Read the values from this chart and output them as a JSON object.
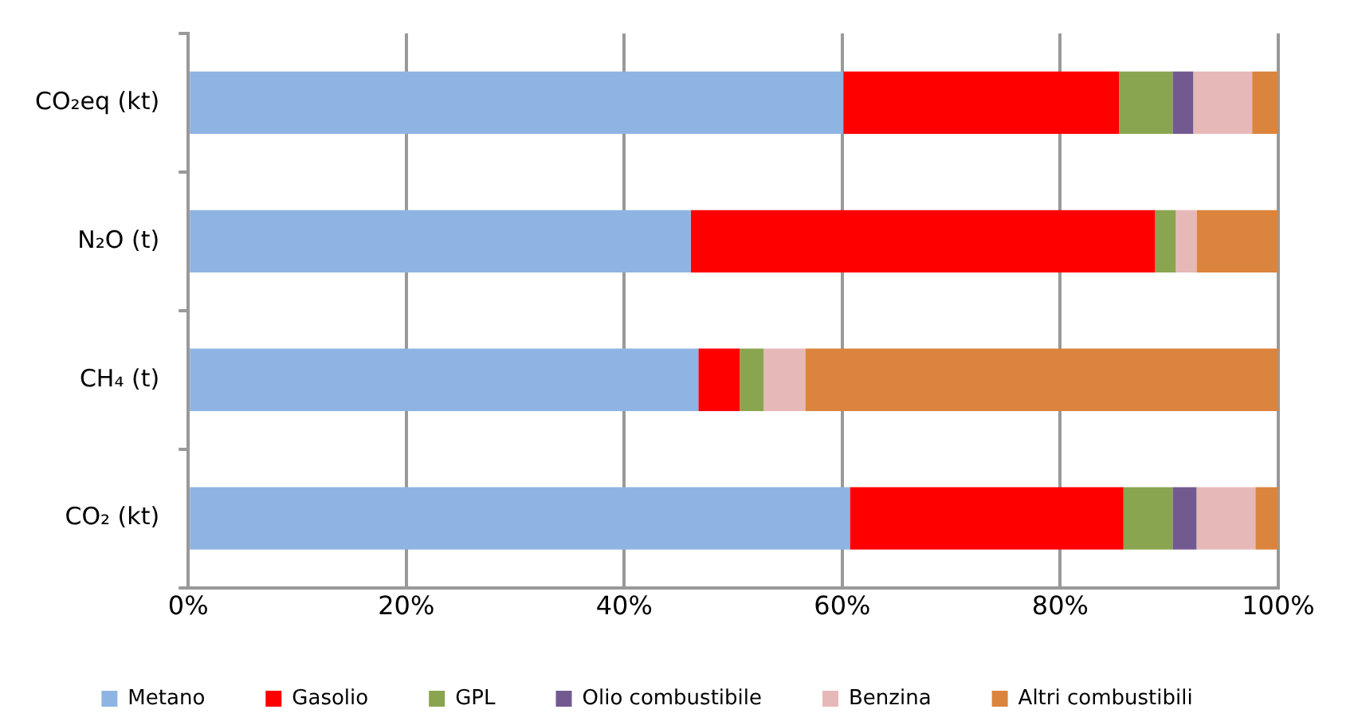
{
  "chart_data": {
    "type": "bar",
    "orientation": "horizontal",
    "stacked": true,
    "categories": [
      "CO₂eq (kt)",
      "N₂O (t)",
      "CH₄ (t)",
      "CO₂ (kt)"
    ],
    "series": [
      {
        "name": "Metano",
        "color": "#8eb4e3",
        "values": [
          60.1,
          46.1,
          46.8,
          60.7
        ]
      },
      {
        "name": "Gasolio",
        "color": "#ff0000",
        "values": [
          25.3,
          42.6,
          3.8,
          25.1
        ]
      },
      {
        "name": "GPL",
        "color": "#8aa54f",
        "values": [
          4.9,
          1.9,
          2.2,
          4.5
        ]
      },
      {
        "name": "Olio combustibile",
        "color": "#725a91",
        "values": [
          1.9,
          0,
          0,
          2.2
        ]
      },
      {
        "name": "Benzina",
        "color": "#e6b9b8",
        "values": [
          5.4,
          1.9,
          3.8,
          5.4
        ]
      },
      {
        "name": "Altri combustibili",
        "color": "#db843d",
        "values": [
          2.4,
          7.5,
          43.4,
          2.1
        ]
      }
    ],
    "xlim": [
      0,
      100
    ],
    "xticks": [
      {
        "value": 0,
        "label": "0%"
      },
      {
        "value": 20,
        "label": "20%"
      },
      {
        "value": 40,
        "label": "40%"
      },
      {
        "value": 60,
        "label": "60%"
      },
      {
        "value": 80,
        "label": "80%"
      },
      {
        "value": 100,
        "label": "100%"
      }
    ],
    "grid": "x",
    "legend": "bottom"
  }
}
